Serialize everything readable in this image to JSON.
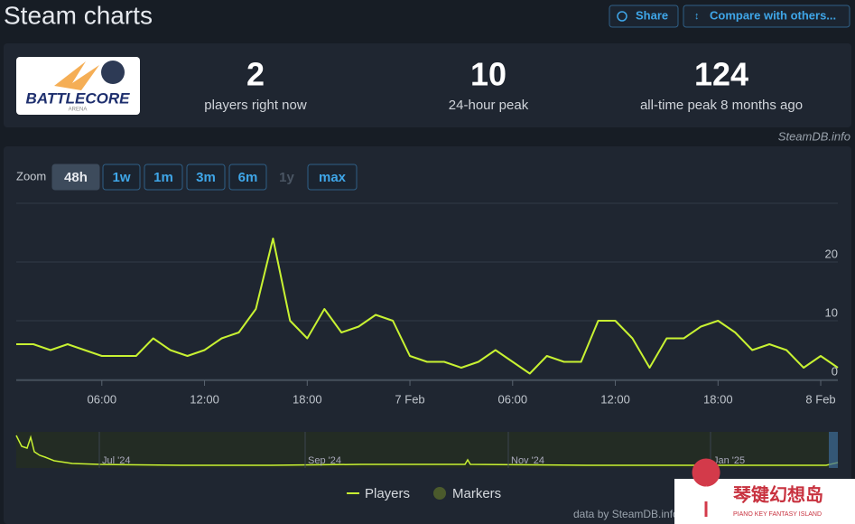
{
  "header": {
    "title": "Steam charts",
    "share": "Share",
    "compare": "Compare with others..."
  },
  "game": {
    "logo": "BATTLECORE",
    "logo_sub": "ARENA"
  },
  "stats": [
    {
      "value": 2,
      "label": "players right now"
    },
    {
      "value": 10,
      "label": "24-hour peak"
    },
    {
      "value": 124,
      "label": "all-time peak 8 months ago"
    }
  ],
  "source": "SteamDB.info",
  "zoom": {
    "label": "Zoom",
    "options": [
      "48h",
      "1w",
      "1m",
      "3m",
      "6m",
      "1y",
      "max"
    ]
  },
  "chart_data": {
    "type": "line",
    "x": [
      1,
      2,
      3,
      4,
      5,
      6,
      7,
      8,
      9,
      10,
      11,
      12,
      13,
      14,
      15,
      16,
      17,
      18,
      19,
      20,
      21,
      22,
      23,
      24,
      25,
      26,
      27,
      28,
      29,
      30,
      31,
      32,
      33,
      34,
      35,
      36,
      37,
      38,
      39,
      40,
      41,
      42,
      43,
      44,
      45,
      46,
      47,
      48,
      49
    ],
    "series": [
      {
        "name": "Players",
        "color": "#c8f232",
        "values": [
          6,
          6,
          5,
          6,
          5,
          4,
          4,
          4,
          7,
          5,
          4,
          5,
          7,
          8,
          12,
          24,
          10,
          7,
          12,
          8,
          9,
          11,
          10,
          4,
          3,
          3,
          2,
          3,
          5,
          3,
          1,
          4,
          3,
          3,
          10,
          10,
          7,
          2,
          7,
          7,
          9,
          10,
          8,
          5,
          6,
          5,
          2,
          4,
          2
        ]
      }
    ],
    "xlim": [
      1,
      49
    ],
    "xticks": [
      {
        "value": 6,
        "label": "06:00"
      },
      {
        "value": 12,
        "label": "12:00"
      },
      {
        "value": 18,
        "label": "18:00"
      },
      {
        "value": 24,
        "label": "7 Feb"
      },
      {
        "value": 30,
        "label": "06:00"
      },
      {
        "value": 36,
        "label": "12:00"
      },
      {
        "value": 42,
        "label": "18:00"
      },
      {
        "value": 48,
        "label": "8 Feb"
      }
    ],
    "ylim": [
      0,
      30
    ],
    "yticks": [
      0,
      10,
      20
    ],
    "grid": true,
    "markers_legend": "Markers"
  },
  "navigator": {
    "labels": [
      "Jul '24",
      "Sep '24",
      "Nov '24",
      "Jan '25"
    ]
  },
  "credit": "data by SteamDB.info",
  "watermark": {
    "title": "琴键幻想岛",
    "subtitle": "PIANO KEY FANTASY ISLAND"
  }
}
